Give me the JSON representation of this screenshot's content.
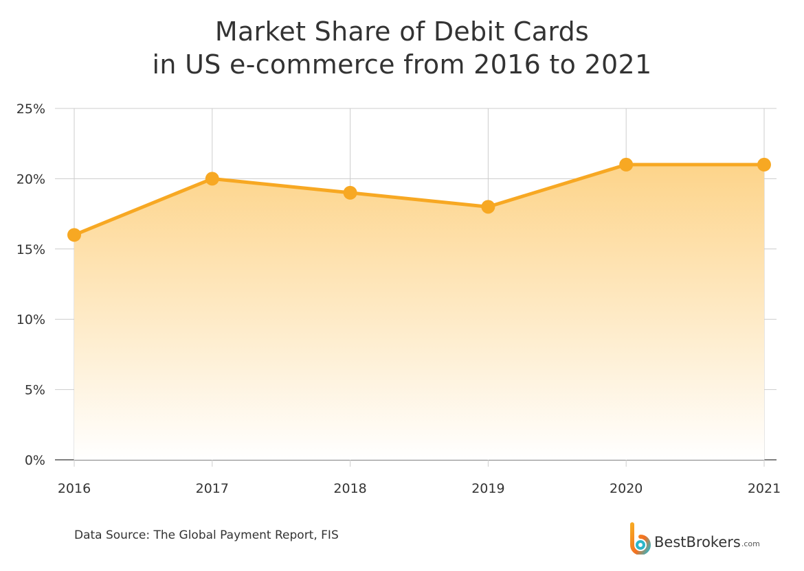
{
  "title": {
    "line1": "Market Share of Debit Cards",
    "line2": "in US e-commerce from 2016 to 2021"
  },
  "chart_data": {
    "type": "area",
    "title": "Market Share of Debit Cards in US e-commerce from 2016 to 2021",
    "x": [
      "2016",
      "2017",
      "2018",
      "2019",
      "2020",
      "2021"
    ],
    "series": [
      {
        "values": [
          16,
          20,
          19,
          18,
          21,
          21
        ]
      }
    ],
    "yticks": [
      0,
      5,
      10,
      15,
      20,
      25
    ],
    "ytick_labels": [
      "0%",
      "5%",
      "10%",
      "15%",
      "20%",
      "25%"
    ],
    "ylim": [
      0,
      25
    ],
    "grid": true,
    "colors": {
      "line": "#F7A823",
      "fill_top": "#FDD48A",
      "fill_bottom": "#FFFFFF",
      "grid": "#CCCCCC"
    }
  },
  "source": "Data Source: The Global Payment Report, FIS",
  "brand": {
    "name": "BestBrokers",
    "tld": ".com",
    "icon": "bestbrokers-logo-icon"
  }
}
